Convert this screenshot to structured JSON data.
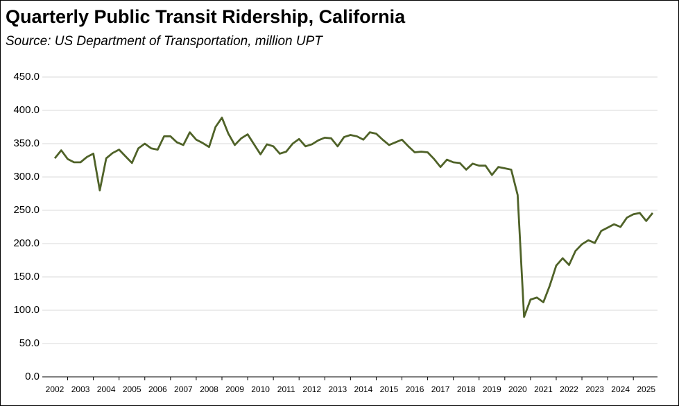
{
  "chart_data": {
    "type": "line",
    "title": "Quarterly Public Transit Ridership, California",
    "subtitle": "Source:  US Department of Transportation, million UPT",
    "categories": [
      "2002",
      null,
      null,
      null,
      "2003",
      null,
      null,
      null,
      "2004",
      null,
      null,
      null,
      "2005",
      null,
      null,
      null,
      "2006",
      null,
      null,
      null,
      "2007",
      null,
      null,
      null,
      "2008",
      null,
      null,
      null,
      "2009",
      null,
      null,
      null,
      "2010",
      null,
      null,
      null,
      "2011",
      null,
      null,
      null,
      "2012",
      null,
      null,
      null,
      "2013",
      null,
      null,
      null,
      "2014",
      null,
      null,
      null,
      "2015",
      null,
      null,
      null,
      "2016",
      null,
      null,
      null,
      "2017",
      null,
      null,
      null,
      "2018",
      null,
      null,
      null,
      "2019",
      null,
      null,
      null,
      "2020",
      null,
      null,
      null,
      "2021",
      null,
      null,
      null,
      "2022",
      null,
      null,
      null,
      "2023",
      null,
      null,
      null,
      "2024",
      null,
      null,
      null,
      "2025",
      null
    ],
    "series": [
      {
        "color": "#4f6228",
        "values": [
          328,
          340,
          327,
          322,
          322,
          330,
          335,
          280,
          328,
          336,
          341,
          331,
          321,
          343,
          350,
          343,
          341,
          361,
          361,
          352,
          348,
          367,
          356,
          351,
          345,
          375,
          389,
          365,
          348,
          358,
          364,
          349,
          334,
          349,
          346,
          335,
          338,
          350,
          357,
          346,
          349,
          355,
          359,
          358,
          346,
          360,
          363,
          361,
          356,
          367,
          365,
          356,
          348,
          352,
          356,
          346,
          337,
          338,
          337,
          327,
          315,
          326,
          322,
          321,
          311,
          320,
          317,
          317,
          303,
          315,
          313,
          311,
          273,
          90,
          116,
          119,
          112,
          137,
          167,
          178,
          168,
          189,
          199,
          205,
          201,
          219,
          224,
          229,
          225,
          239,
          244,
          246,
          234,
          246
        ]
      }
    ],
    "ylim": [
      0,
      450
    ],
    "yticks": [
      {
        "value": 0,
        "label": "0.0"
      },
      {
        "value": 50,
        "label": "50.0"
      },
      {
        "value": 100,
        "label": "100.0"
      },
      {
        "value": 150,
        "label": "150.0"
      },
      {
        "value": 200,
        "label": "200.0"
      },
      {
        "value": 250,
        "label": "250.0"
      },
      {
        "value": 300,
        "label": "300.0"
      },
      {
        "value": 350,
        "label": "350.0"
      },
      {
        "value": 400,
        "label": "400.0"
      },
      {
        "value": 450,
        "label": "450.0"
      }
    ],
    "grid": true
  }
}
